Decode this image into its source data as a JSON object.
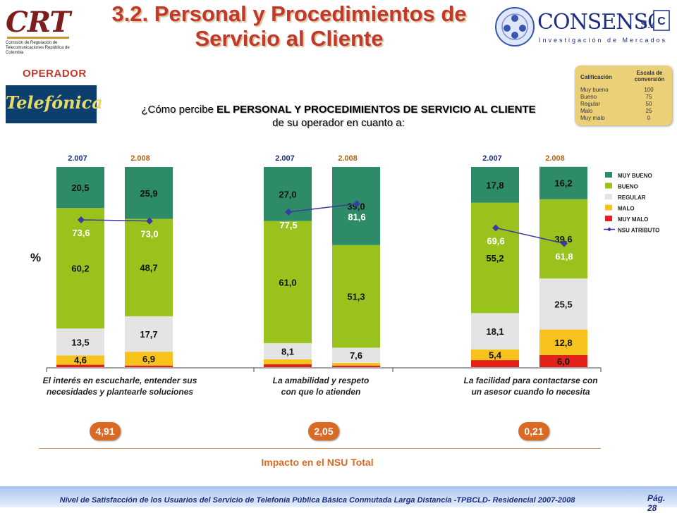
{
  "header": {
    "title_line1": "3.2. Personal y Procedimientos de",
    "title_line2": "Servicio al Cliente"
  },
  "logos": {
    "left_logo_text": "CRT",
    "left_logo_sub": "Comisión de Regulación de Telecomunicaciones República de Colombia",
    "right_logo_name": "CONSENSO",
    "right_logo_sa": "S.A.",
    "right_logo_tagline": "Investigación de Mercados",
    "operator_logo_text": "Telefónica"
  },
  "operador_label": "OPERADOR",
  "question": {
    "prefix": "¿Cómo percibe ",
    "bold": "EL PERSONAL Y PROCEDIMIENTOS DE SERVICIO AL CLIENTE",
    "suffix": " de su operador en cuanto a:"
  },
  "scale_table": {
    "header_left": "Calificación",
    "header_right": "Escala de conversión",
    "rows": [
      {
        "label": "Muy bueno",
        "value": "100"
      },
      {
        "label": "Bueno",
        "value": "75"
      },
      {
        "label": "Regular",
        "value": "50"
      },
      {
        "label": "Malo",
        "value": "25"
      },
      {
        "label": "Muy malo",
        "value": "0"
      }
    ]
  },
  "y_unit": "%",
  "chart_data": {
    "type": "bar",
    "stacked": true,
    "ylim": [
      0,
      100
    ],
    "categories": [
      "2.007",
      "2.008",
      "2.007",
      "2.008",
      "2.007",
      "2.008"
    ],
    "series": [
      {
        "name": "MUY BUENO",
        "color": "#2e8b68",
        "values": [
          20.5,
          25.9,
          27.0,
          39.0,
          17.8,
          16.2
        ],
        "labels": [
          "20,5",
          "25,9",
          "27,0",
          "39,0",
          "17,8",
          "16,2"
        ]
      },
      {
        "name": "BUENO",
        "color": "#99c31c",
        "values": [
          60.2,
          48.7,
          61.0,
          51.3,
          55.2,
          39.6
        ],
        "labels": [
          "60,2",
          "48,7",
          "61,0",
          "51,3",
          "55,2",
          "39,6"
        ]
      },
      {
        "name": "REGULAR",
        "color": "#e4e4e4",
        "values": [
          13.5,
          17.7,
          8.1,
          7.6,
          18.1,
          25.5
        ],
        "labels": [
          "13,5",
          "17,7",
          "8,1",
          "7,6",
          "18,1",
          "25,5"
        ]
      },
      {
        "name": "MALO",
        "color": "#f7c21b",
        "values": [
          4.6,
          6.9,
          2.5,
          1.3,
          5.4,
          12.8
        ],
        "labels": [
          "4,6",
          "6,9",
          "",
          "",
          "5,4",
          "12,8"
        ]
      },
      {
        "name": "MUY MALO",
        "color": "#e3211b",
        "values": [
          1.2,
          0.8,
          1.4,
          0.8,
          3.5,
          6.0
        ],
        "labels": [
          "",
          "",
          "",
          "",
          "",
          "6,0"
        ]
      }
    ],
    "line": {
      "name": "NSU ATRIBUTO",
      "color": "#3a3aa0",
      "values": [
        73.6,
        73.0,
        77.5,
        81.6,
        69.6,
        61.8
      ],
      "labels": [
        "73,6",
        "73,0",
        "77,5",
        "81,6",
        "69,6",
        "61,8"
      ]
    },
    "groups": [
      {
        "label": "El interés en escucharle, entender sus necesidades y plantearle soluciones",
        "impact": "4,91"
      },
      {
        "label": "La amabilidad y respeto con que lo atienden",
        "impact": "2,05"
      },
      {
        "label": "La facilidad para contactarse con un asesor cuando lo necesita",
        "impact": "0,21"
      }
    ],
    "legend_position": "right"
  },
  "impact_caption": "Impacto en el NSU Total",
  "footer": {
    "text": "Nivel de Satisfacción de los Usuarios del Servicio de Telefonía Pública Básica Conmutada Larga Distancia -TPBCLD- Residencial 2007-2008",
    "page": "Pág. 28"
  },
  "colors": {
    "title": "#c0392b",
    "accent_orange": "#d96a25",
    "brand_blue": "#1d2f80"
  }
}
